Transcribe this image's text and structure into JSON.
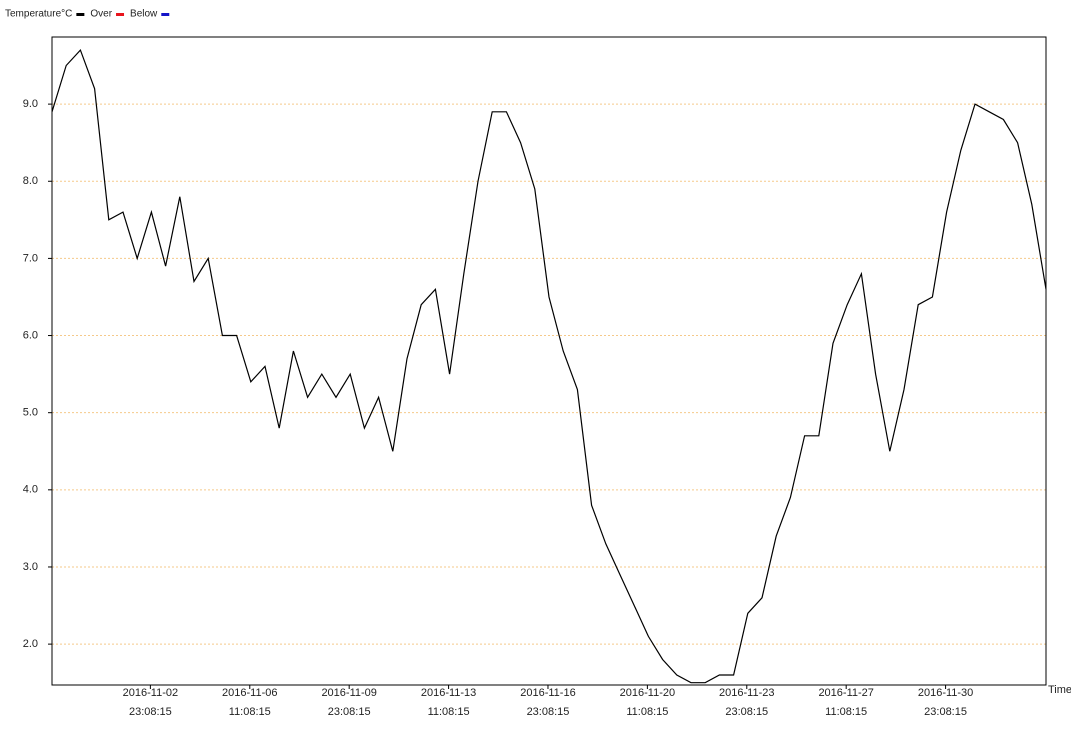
{
  "chart_data": {
    "type": "line",
    "x_label": "Time",
    "series": [
      {
        "name": "Temperature°C",
        "color": "#000000",
        "values": [
          8.9,
          9.5,
          9.7,
          9.2,
          7.5,
          7.6,
          7.0,
          7.6,
          6.9,
          7.8,
          6.7,
          7.0,
          6.0,
          6.0,
          5.4,
          5.6,
          4.8,
          5.8,
          5.2,
          5.5,
          5.2,
          5.5,
          4.8,
          5.2,
          4.5,
          5.7,
          6.4,
          6.6,
          5.5,
          6.8,
          8.0,
          8.9,
          8.9,
          8.5,
          7.9,
          6.5,
          5.8,
          5.3,
          3.8,
          3.3,
          2.9,
          2.5,
          2.1,
          1.8,
          1.6,
          1.5,
          1.5,
          1.6,
          1.6,
          2.4,
          2.6,
          3.4,
          3.9,
          4.7,
          4.7,
          5.9,
          6.4,
          6.8,
          5.5,
          4.5,
          5.3,
          6.4,
          6.5,
          7.6,
          8.4,
          9.0,
          8.9,
          8.8,
          8.5,
          7.7,
          6.6
        ]
      }
    ],
    "legend_items": [
      {
        "name": "Over",
        "color": "#e8141c"
      },
      {
        "name": "Below",
        "color": "#1414c8"
      }
    ],
    "x": [
      "2016-10-30 12:00:00",
      "2016-10-31 00:00:00",
      "2016-10-31 12:00:00",
      "2016-11-01 00:00:00",
      "2016-11-01 12:00:00",
      "2016-11-02 00:00:00",
      "2016-11-02 12:00:00",
      "2016-11-03 00:00:00",
      "2016-11-03 12:00:00",
      "2016-11-04 00:00:00",
      "2016-11-04 12:00:00",
      "2016-11-05 00:00:00",
      "2016-11-05 12:00:00",
      "2016-11-06 00:00:00",
      "2016-11-06 12:00:00",
      "2016-11-07 00:00:00",
      "2016-11-07 12:00:00",
      "2016-11-08 00:00:00",
      "2016-11-08 12:00:00",
      "2016-11-09 00:00:00",
      "2016-11-09 12:00:00",
      "2016-11-10 00:00:00",
      "2016-11-10 12:00:00",
      "2016-11-11 00:00:00",
      "2016-11-11 12:00:00",
      "2016-11-12 00:00:00",
      "2016-11-12 12:00:00",
      "2016-11-13 00:00:00",
      "2016-11-13 12:00:00",
      "2016-11-14 00:00:00",
      "2016-11-14 12:00:00",
      "2016-11-15 00:00:00",
      "2016-11-15 12:00:00",
      "2016-11-16 00:00:00",
      "2016-11-16 12:00:00",
      "2016-11-17 00:00:00",
      "2016-11-17 12:00:00",
      "2016-11-18 00:00:00",
      "2016-11-18 12:00:00",
      "2016-11-19 00:00:00",
      "2016-11-19 12:00:00",
      "2016-11-20 00:00:00",
      "2016-11-20 12:00:00",
      "2016-11-21 00:00:00",
      "2016-11-21 12:00:00",
      "2016-11-22 00:00:00",
      "2016-11-22 12:00:00",
      "2016-11-23 00:00:00",
      "2016-11-23 12:00:00",
      "2016-11-24 00:00:00",
      "2016-11-24 12:00:00",
      "2016-11-25 00:00:00",
      "2016-11-25 12:00:00",
      "2016-11-26 00:00:00",
      "2016-11-26 12:00:00",
      "2016-11-27 00:00:00",
      "2016-11-27 12:00:00",
      "2016-11-28 00:00:00",
      "2016-11-28 12:00:00",
      "2016-11-29 00:00:00",
      "2016-11-29 12:00:00",
      "2016-11-30 00:00:00",
      "2016-11-30 12:00:00",
      "2016-12-01 00:00:00",
      "2016-12-01 12:00:00",
      "2016-12-02 00:00:00",
      "2016-12-02 12:00:00",
      "2016-12-03 00:00:00",
      "2016-12-03 12:00:00",
      "2016-12-04 00:00:00",
      "2016-12-04 12:00:00"
    ],
    "xlim": [
      "2016-10-30 12:00:00",
      "2016-12-04 12:00:00"
    ],
    "xticks": [
      "2016-11-02 23:08:15",
      "2016-11-06 11:08:15",
      "2016-11-09 23:08:15",
      "2016-11-13 11:08:15",
      "2016-11-16 23:08:15",
      "2016-11-20 11:08:15",
      "2016-11-23 23:08:15",
      "2016-11-27 11:08:15",
      "2016-11-30 23:08:15"
    ],
    "ylim": [
      1.47,
      9.87
    ],
    "yticks": [
      {
        "value": 2,
        "label": "2.0"
      },
      {
        "value": 3,
        "label": "3.0"
      },
      {
        "value": 4,
        "label": "4.0"
      },
      {
        "value": 5,
        "label": "5.0"
      },
      {
        "value": 6,
        "label": "6.0"
      },
      {
        "value": 7,
        "label": "7.0"
      },
      {
        "value": 8,
        "label": "8.0"
      },
      {
        "value": 9,
        "label": "9.0"
      }
    ],
    "grid": true,
    "grid_color": "#f5c98a"
  }
}
